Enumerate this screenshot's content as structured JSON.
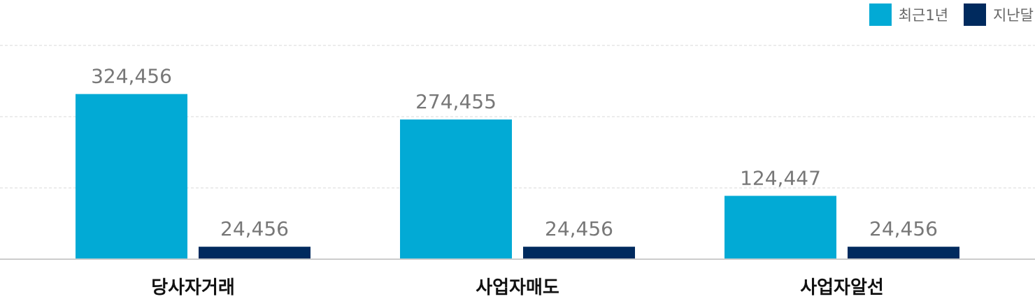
{
  "chart_data": {
    "type": "bar",
    "categories": [
      "당사자거래",
      "사업자매도",
      "사업자알선"
    ],
    "series": [
      {
        "name": "최근1년",
        "values": [
          324456,
          274455,
          124447
        ],
        "labels": [
          "324,456",
          "274,455",
          "124,447"
        ]
      },
      {
        "name": "지난달",
        "values": [
          24456,
          24456,
          24456
        ],
        "labels": [
          "24,456",
          "24,456",
          "24,456"
        ]
      }
    ],
    "ylim": [
      0,
      420000
    ],
    "grid": true,
    "legend_position": "top-right",
    "colors": {
      "series_0": "#02aad5",
      "series_1": "#002a5e",
      "grid": "#d9d9d9",
      "axis": "#cccccc",
      "label_text": "#777777",
      "category_text": "#111111"
    }
  }
}
